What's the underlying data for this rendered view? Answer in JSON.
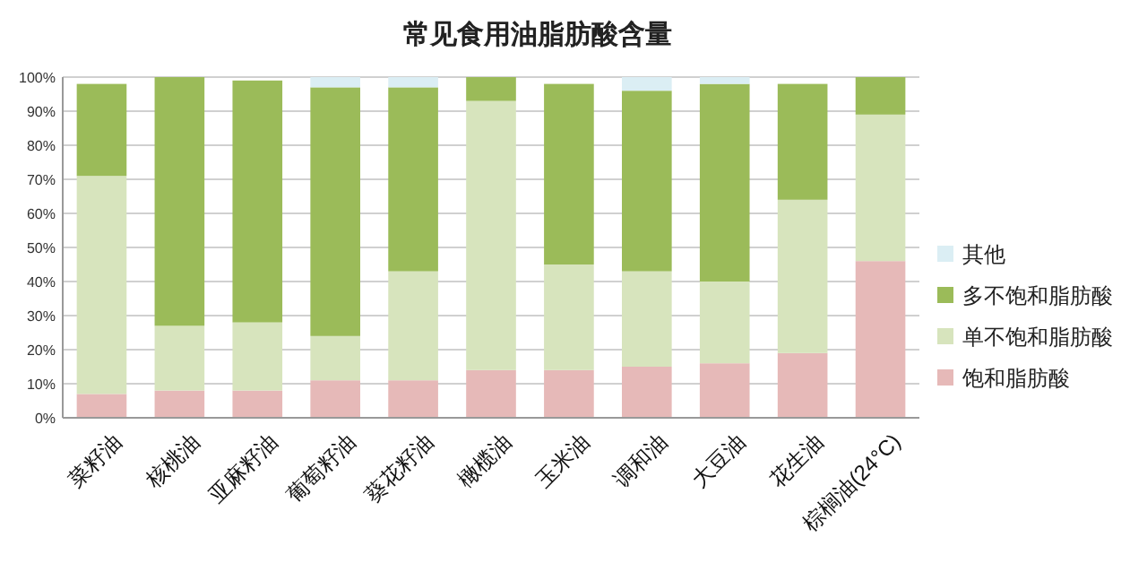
{
  "chart_data": {
    "type": "bar",
    "title": "常见食用油脂肪酸含量",
    "stacked": true,
    "categories": [
      "菜籽油",
      "核桃油",
      "亚麻籽油",
      "葡萄籽油",
      "葵花籽油",
      "橄榄油",
      "玉米油",
      "调和油",
      "大豆油",
      "花生油",
      "棕榈油(24°C)"
    ],
    "series": [
      {
        "name": "饱和脂肪酸",
        "color": "#e6b9b8",
        "values": [
          7,
          8,
          8,
          11,
          11,
          14,
          14,
          15,
          16,
          19,
          46
        ]
      },
      {
        "name": "单不饱和脂肪酸",
        "color": "#d7e4bd",
        "values": [
          64,
          19,
          20,
          13,
          32,
          79,
          31,
          28,
          24,
          45,
          43
        ]
      },
      {
        "name": "多不饱和脂肪酸",
        "color": "#9bbb59",
        "values": [
          27,
          73,
          71,
          73,
          54,
          7,
          53,
          53,
          58,
          34,
          11
        ]
      },
      {
        "name": "其他",
        "color": "#dbeef4",
        "values": [
          0,
          0,
          0,
          3,
          3,
          0,
          0,
          4,
          2,
          0,
          0
        ]
      }
    ],
    "ylim": [
      0,
      100
    ],
    "yticks": [
      {
        "value": 0,
        "label": "0%"
      },
      {
        "value": 10,
        "label": "10%"
      },
      {
        "value": 20,
        "label": "20%"
      },
      {
        "value": 30,
        "label": "30%"
      },
      {
        "value": 40,
        "label": "40%"
      },
      {
        "value": 50,
        "label": "50%"
      },
      {
        "value": 60,
        "label": "60%"
      },
      {
        "value": 70,
        "label": "70%"
      },
      {
        "value": 80,
        "label": "80%"
      },
      {
        "value": 90,
        "label": "90%"
      },
      {
        "value": 100,
        "label": "100%"
      }
    ],
    "grid": "y",
    "legend": "right"
  }
}
